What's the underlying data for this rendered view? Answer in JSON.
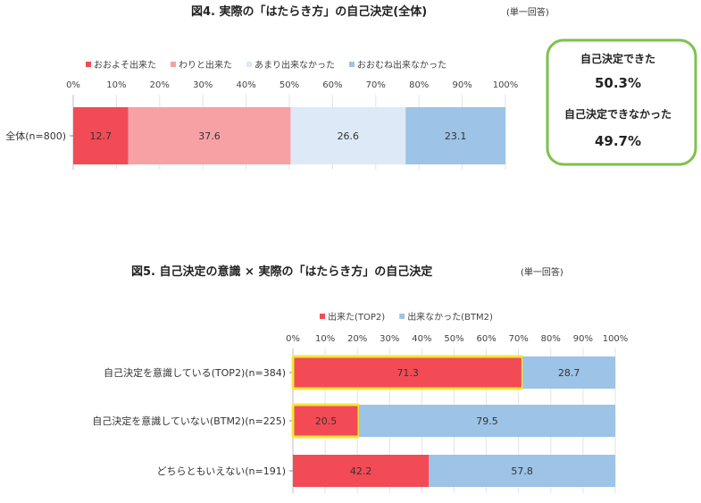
{
  "chart_data": [
    {
      "type": "bar",
      "stacked": true,
      "orientation": "horizontal",
      "title": "図4. 実際の「はたらき方」の自己決定(全体)",
      "note": "(単一回答)",
      "xlim": [
        0,
        100
      ],
      "x_ticks": [
        "0%",
        "10%",
        "20%",
        "30%",
        "40%",
        "50%",
        "60%",
        "70%",
        "80%",
        "90%",
        "100%"
      ],
      "categories": [
        "全体(n=800)"
      ],
      "legend_position": "top",
      "series": [
        {
          "name": "おおよそ出来た",
          "color": "#f24b56",
          "values": [
            12.7
          ]
        },
        {
          "name": "わりと出来た",
          "color": "#f7a1a4",
          "values": [
            37.6
          ]
        },
        {
          "name": "あまり出来なかった",
          "color": "#dde9f6",
          "values": [
            26.6
          ]
        },
        {
          "name": "おおむね出来なかった",
          "color": "#9dc3e6",
          "values": [
            23.1
          ]
        }
      ],
      "summary": [
        {
          "label": "自己決定できた",
          "value": "50.3%"
        },
        {
          "label": "自己決定できなかった",
          "value": "49.7%"
        }
      ],
      "summary_border_color": "#7dc24b"
    },
    {
      "type": "bar",
      "stacked": true,
      "orientation": "horizontal",
      "title": "図5. 自己決定の意識 × 実際の「はたらき方」の自己決定",
      "note": "(単一回答)",
      "xlim": [
        0,
        100
      ],
      "x_ticks": [
        "0%",
        "10%",
        "20%",
        "30%",
        "40%",
        "50%",
        "60%",
        "70%",
        "80%",
        "90%",
        "100%"
      ],
      "categories": [
        "自己決定を意識している(TOP2)(n=384)",
        "自己決定を意識していない(BTM2)(n=225)",
        "どちらともいえない(n=191)"
      ],
      "legend_position": "top",
      "series": [
        {
          "name": "出来た(TOP2)",
          "color": "#f24b56",
          "values": [
            71.3,
            20.5,
            42.2
          ]
        },
        {
          "name": "出来なかった(BTM2)",
          "color": "#9dc3e6",
          "values": [
            28.7,
            79.5,
            57.8
          ]
        }
      ],
      "highlighted": [
        [
          0,
          0
        ],
        [
          1,
          0
        ]
      ],
      "highlight_color": "#f2e635"
    }
  ]
}
